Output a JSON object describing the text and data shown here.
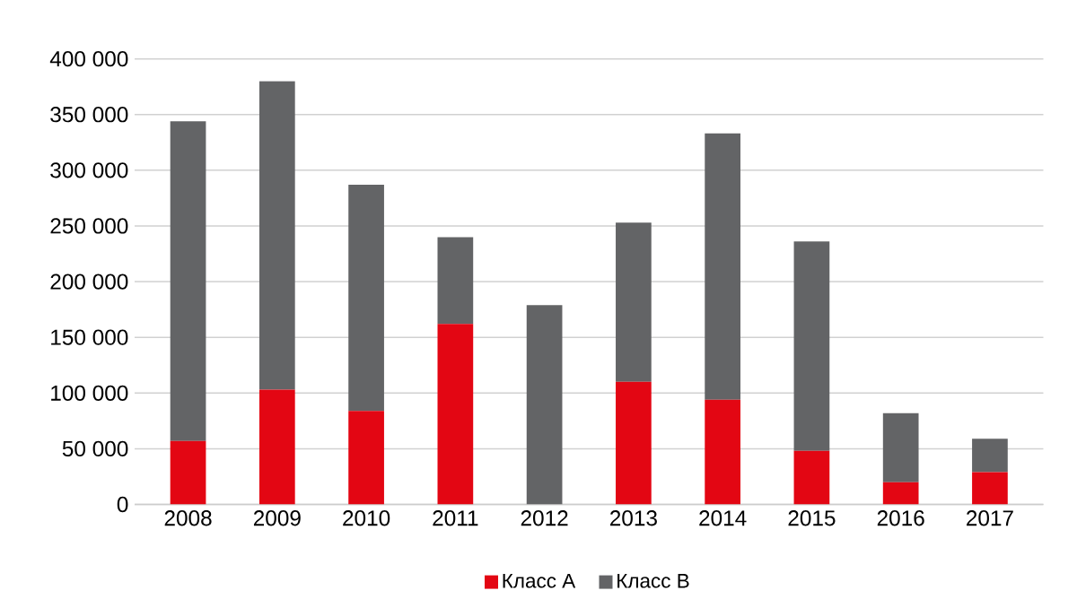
{
  "chart_data": {
    "type": "bar",
    "stacked": true,
    "grid": "y",
    "legend": "bottom",
    "categories": [
      "2008",
      "2009",
      "2010",
      "2011",
      "2012",
      "2013",
      "2014",
      "2015",
      "2016",
      "2017"
    ],
    "series": [
      {
        "name": "Класс А",
        "color": "#e30613",
        "values": [
          57000,
          103000,
          84000,
          162000,
          0,
          110000,
          94000,
          48000,
          20000,
          29000
        ]
      },
      {
        "name": "Класс В",
        "color": "#636466",
        "values": [
          287000,
          277000,
          203000,
          78000,
          179000,
          143000,
          239000,
          188000,
          62000,
          30000
        ]
      }
    ],
    "ylim": [
      0,
      400000
    ],
    "yticks": [
      {
        "value": 0,
        "label": "0"
      },
      {
        "value": 50000,
        "label": "50 000"
      },
      {
        "value": 100000,
        "label": "100 000"
      },
      {
        "value": 150000,
        "label": "150 000"
      },
      {
        "value": 200000,
        "label": "200 000"
      },
      {
        "value": 250000,
        "label": "250 000"
      },
      {
        "value": 300000,
        "label": "300 000"
      },
      {
        "value": 350000,
        "label": "350 000"
      },
      {
        "value": 400000,
        "label": "400 000"
      }
    ]
  }
}
